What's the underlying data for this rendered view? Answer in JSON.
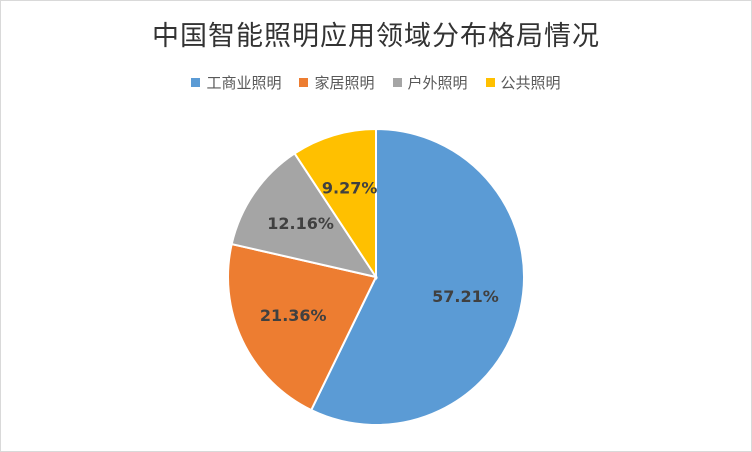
{
  "chart_data": {
    "type": "pie",
    "title": "中国智能照明应用领域分布格局情况",
    "legend_position": "top",
    "categories": [
      "工商业照明",
      "家居照明",
      "户外照明",
      "公共照明"
    ],
    "values": [
      57.21,
      21.36,
      12.16,
      9.27
    ],
    "value_labels": [
      "57.21%",
      "21.36%",
      "12.16%",
      "9.27%"
    ],
    "colors": [
      "#5b9bd5",
      "#ed7d31",
      "#a5a5a5",
      "#ffc000"
    ]
  }
}
